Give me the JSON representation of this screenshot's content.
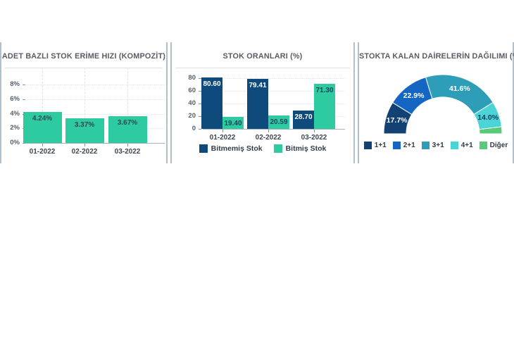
{
  "page": {
    "background": "#ffffff",
    "divider_color": "#b2c0cb"
  },
  "chart_data": [
    {
      "type": "bar",
      "title": "ADET BAZLI STOK ERİME HIZI (KOMPOZİT)",
      "categories": [
        "01-2022",
        "02-2022",
        "03-2022"
      ],
      "values": [
        4.24,
        3.37,
        3.67
      ],
      "value_labels": [
        "4.24%",
        "3.37%",
        "3.67%"
      ],
      "ylabel": "",
      "xlabel": "",
      "ylim": [
        0,
        8
      ],
      "y_ticks": {
        "values": [
          0,
          2,
          4,
          6,
          8
        ],
        "labels": [
          "0%",
          "2%",
          "4%",
          "6%",
          "8%"
        ]
      },
      "grid": true,
      "bar_color": "#2ecba0",
      "value_label_color": "#2f4858",
      "legend_position": "none"
    },
    {
      "type": "grouped_bar",
      "title": "STOK ORANLARI (%)",
      "categories": [
        "01-2022",
        "02-2022",
        "03-2022"
      ],
      "series": [
        {
          "name": "Bitmemiş Stok",
          "color": "#0f4a7c",
          "label_color": "#ffffff",
          "values": [
            80.6,
            79.41,
            28.7
          ],
          "value_labels": [
            "80.60",
            "79.41",
            "28.70"
          ]
        },
        {
          "name": "Bitmiş Stok",
          "color": "#2ecba0",
          "label_color": "#16435f",
          "values": [
            19.4,
            20.59,
            71.3
          ],
          "value_labels": [
            "19.40",
            "20.59",
            "71.30"
          ]
        }
      ],
      "ylim": [
        0,
        90
      ],
      "y_ticks": {
        "values": [
          0,
          20,
          40,
          60,
          80
        ],
        "labels": [
          "0",
          "20",
          "40",
          "60",
          "80"
        ]
      },
      "grid": true,
      "legend_position": "bottom"
    },
    {
      "type": "donut_semi",
      "title": "STOKTA KALAN DAİRELERİN DAĞILIMI (%)",
      "slices": [
        {
          "label": "1+1",
          "value": 17.7,
          "value_label": "17.7%",
          "color": "#144173",
          "label_color": "#ffffff"
        },
        {
          "label": "2+1",
          "value": 22.9,
          "value_label": "22.9%",
          "color": "#1565c2",
          "label_color": "#ffffff"
        },
        {
          "label": "3+1",
          "value": 41.6,
          "value_label": "41.6%",
          "color": "#2d9db8",
          "label_color": "#ffffff"
        },
        {
          "label": "4+1",
          "value": 14.0,
          "value_label": "14.0%",
          "color": "#4ad4d6",
          "label_color": "#123a5e"
        },
        {
          "label": "Diğer",
          "value": 3.8,
          "value_label": "",
          "color": "#58cb78",
          "label_color": "#ffffff"
        }
      ],
      "legend_position": "bottom"
    }
  ]
}
